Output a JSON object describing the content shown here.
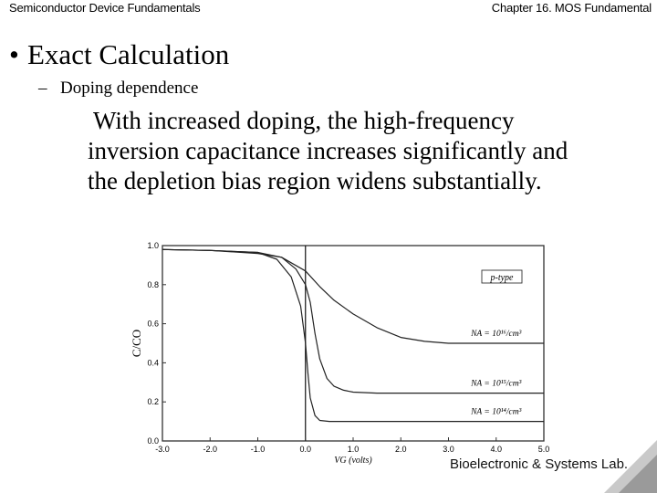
{
  "header": {
    "left": "Semiconductor Device Fundamentals",
    "right": "Chapter 16. MOS Fundamental"
  },
  "bullet": {
    "symbol": "•",
    "title": "Exact Calculation"
  },
  "subbullet": {
    "symbol": "–",
    "text": "Doping dependence"
  },
  "paragraph": {
    "line1": "With increased doping, the high-frequency",
    "line2": "inversion capacitance increases significantly and",
    "line3": "the depletion bias region widens substantially."
  },
  "footer": {
    "text": "Bioelectronic & Systems Lab."
  },
  "chart_data": {
    "type": "line",
    "xlabel": "VG (volts)",
    "ylabel": "C/CO",
    "xlim": [
      -3.0,
      5.0
    ],
    "ylim": [
      0.0,
      1.0
    ],
    "xticks": [
      "-3.0",
      "-2.0",
      "-1.0",
      "0.0",
      "1.0",
      "2.0",
      "3.0",
      "4.0",
      "5.0"
    ],
    "yticks": [
      "0.0",
      "0.2",
      "0.4",
      "0.6",
      "0.8",
      "1.0"
    ],
    "legend_box": "p-type",
    "series": [
      {
        "name": "NA = 10^16/cm^3",
        "label": "NA = 10¹⁶/cm³",
        "x": [
          -3.0,
          -2.0,
          -1.0,
          -0.5,
          0.0,
          0.3,
          0.6,
          1.0,
          1.5,
          2.0,
          2.5,
          3.0,
          4.0,
          5.0
        ],
        "y": [
          0.98,
          0.975,
          0.96,
          0.94,
          0.87,
          0.79,
          0.72,
          0.65,
          0.58,
          0.53,
          0.51,
          0.5,
          0.5,
          0.5
        ]
      },
      {
        "name": "NA = 10^15/cm^3",
        "label": "NA = 10¹⁵/cm³",
        "x": [
          -3.0,
          -2.0,
          -1.0,
          -0.5,
          -0.2,
          0.0,
          0.1,
          0.2,
          0.3,
          0.45,
          0.6,
          0.8,
          1.0,
          1.5,
          2.0,
          3.0,
          5.0
        ],
        "y": [
          0.98,
          0.975,
          0.965,
          0.94,
          0.88,
          0.8,
          0.71,
          0.55,
          0.42,
          0.32,
          0.28,
          0.26,
          0.25,
          0.245,
          0.245,
          0.245,
          0.245
        ]
      },
      {
        "name": "NA = 10^14/cm^3",
        "label": "NA = 10¹⁴/cm³",
        "x": [
          -3.0,
          -2.0,
          -1.0,
          -0.6,
          -0.3,
          -0.1,
          0.0,
          0.05,
          0.1,
          0.2,
          0.3,
          0.5,
          1.0,
          2.0,
          5.0
        ],
        "y": [
          0.98,
          0.975,
          0.965,
          0.93,
          0.84,
          0.69,
          0.5,
          0.35,
          0.22,
          0.13,
          0.105,
          0.1,
          0.1,
          0.1,
          0.1
        ]
      }
    ]
  },
  "colors": {
    "background": "#ffffff",
    "text": "#000000",
    "curve": "#222222"
  }
}
